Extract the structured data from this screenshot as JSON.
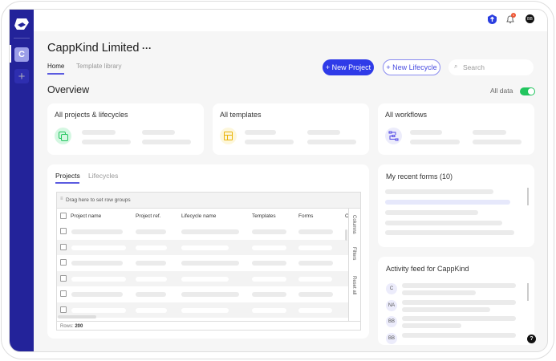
{
  "header": {
    "notification_count": "1",
    "user_initials": "BB"
  },
  "sidebar": {
    "workspace_initial": "C"
  },
  "page": {
    "title": "CappKind Limited",
    "more": "···",
    "tabs": [
      {
        "label": "Home",
        "active": true
      },
      {
        "label": "Template library",
        "active": false
      }
    ]
  },
  "actions": {
    "new_project": "+ New Project",
    "new_lifecycle": "+ New Lifecycle",
    "search_placeholder": "Search"
  },
  "overview": {
    "title": "Overview",
    "all_data_label": "All data",
    "all_data_on": true
  },
  "cards": [
    {
      "title": "All projects & lifecycles",
      "icon": "copy-icon",
      "color": "#22c55e"
    },
    {
      "title": "All templates",
      "icon": "layout-icon",
      "color": "#eab308"
    },
    {
      "title": "All workflows",
      "icon": "workflow-icon",
      "color": "#4f46e5"
    }
  ],
  "table": {
    "tabs": [
      "Projects",
      "Lifecycles"
    ],
    "group_hint": "Drag here to set row groups",
    "columns": [
      "Project name",
      "Project ref.",
      "Lifecycle name",
      "Templates",
      "Forms",
      "Cr"
    ],
    "side_tools": [
      "Columns",
      "Filters",
      "Reset all"
    ],
    "rows_label": "Rows:",
    "rows_count": "200"
  },
  "recent_forms": {
    "title": "My recent forms (10)"
  },
  "activity": {
    "title": "Activity feed for CappKind",
    "avatars": [
      "C",
      "NA",
      "BB",
      "BB"
    ]
  },
  "help": "?",
  "colors": {
    "brand": "#23239a",
    "accent": "#2f3be8",
    "toggle": "#22c55e"
  }
}
